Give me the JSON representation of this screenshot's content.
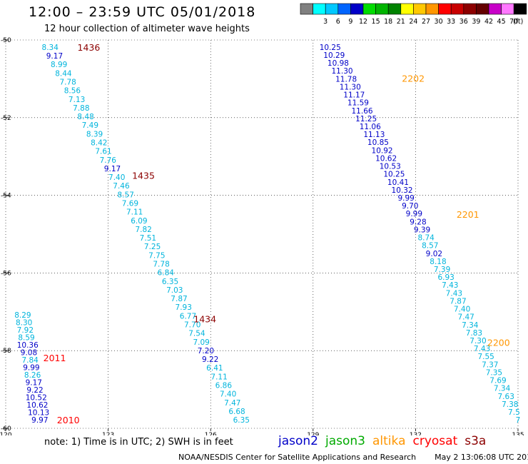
{
  "header": {
    "title": "12:00 – 23:59 UTC 05/01/2018",
    "subtitle": "12 hour collection of altimeter wave heights"
  },
  "legend": {
    "unit": "(ft)",
    "bins": [
      {
        "label": "",
        "color": "#808080"
      },
      {
        "label": "3",
        "color": "#00ffff"
      },
      {
        "label": "6",
        "color": "#00c8ff"
      },
      {
        "label": "9",
        "color": "#0064ff"
      },
      {
        "label": "12",
        "color": "#0000c8"
      },
      {
        "label": "15",
        "color": "#00dc00"
      },
      {
        "label": "18",
        "color": "#00b400"
      },
      {
        "label": "21",
        "color": "#008200"
      },
      {
        "label": "24",
        "color": "#ffff00"
      },
      {
        "label": "27",
        "color": "#ffc800"
      },
      {
        "label": "30",
        "color": "#ff9600"
      },
      {
        "label": "33",
        "color": "#ff0000"
      },
      {
        "label": "36",
        "color": "#c80000"
      },
      {
        "label": "39",
        "color": "#8c0000"
      },
      {
        "label": "42",
        "color": "#640000"
      },
      {
        "label": "45",
        "color": "#c800c8"
      },
      {
        "label": "70",
        "color": "#ff78ff"
      },
      {
        "label": "",
        "color": "#000000"
      }
    ]
  },
  "footer": {
    "note": "note: 1) Time is in UTC; 2) SWH is in feet",
    "satellites": [
      {
        "name": "jason2",
        "color": "#0000c8"
      },
      {
        "name": "jason3",
        "color": "#00aa00"
      },
      {
        "name": "altika",
        "color": "#ff9600"
      },
      {
        "name": "cryosat",
        "color": "#ff0000"
      },
      {
        "name": "s3a",
        "color": "#8c0000"
      }
    ],
    "credit": "NOAA/NESDIS Center for Satellite Applications and Research",
    "timestamp": "May  2 13:06:08 UTC 2018"
  },
  "chart_data": {
    "type": "scatter",
    "xlim": [
      120,
      135
    ],
    "ylim": [
      -60,
      -50
    ],
    "x_ticks": [
      "120",
      "123",
      "126",
      "129",
      "132",
      "135"
    ],
    "y_ticks": [
      "-50",
      "-52",
      "-54",
      "-56",
      "-58",
      "-60"
    ],
    "grid": "dotted",
    "colors": {
      "cyan": "#00b4dc",
      "blue": "#0000c8",
      "s3a": "#8c0000",
      "altika": "#ff9600",
      "cryosat": "#ff0000"
    },
    "series": [
      {
        "name": "s3a",
        "color_key": "cyan",
        "start": [
          121.3,
          -50.2
        ],
        "end": [
          126.9,
          -59.8
        ],
        "values": [
          "8.34",
          "9.17",
          "8.99",
          "8.44",
          "7.78",
          "8.56",
          "7.13",
          "7.88",
          "8.48",
          "7.49",
          "8.39",
          "8.42",
          "7.61",
          "7.76",
          "9.17",
          "7.40",
          "7.46",
          "8.57",
          "7.69",
          "7.11",
          "6.09",
          "7.82",
          "7.51",
          "7.25",
          "7.75",
          "7.78",
          "6.84",
          "6.35",
          "7.03",
          "7.87",
          "7.93",
          "6.77",
          "7.70",
          "7.54",
          "7.09",
          "7.20",
          "9.22",
          "6.41",
          "7.11",
          "6.86",
          "7.40",
          "7.47",
          "6.68",
          "6.35"
        ],
        "blue_indices": [
          1,
          14,
          35,
          36
        ],
        "time_labels": [
          {
            "text": "1436",
            "lon": 122.1,
            "lat": -50.2
          },
          {
            "text": "1435",
            "lon": 123.7,
            "lat": -53.5
          },
          {
            "text": "1434",
            "lon": 125.5,
            "lat": -57.2
          }
        ]
      },
      {
        "name": "altika",
        "color_key": "blue",
        "start": [
          129.5,
          -50.2
        ],
        "end": [
          135.0,
          -59.8
        ],
        "values": [
          "10.25",
          "10.29",
          "10.98",
          "11.30",
          "11.78",
          "11.30",
          "11.17",
          "11.59",
          "11.66",
          "11.25",
          "11.06",
          "11.13",
          "10.85",
          "10.92",
          "10.62",
          "10.53",
          "10.25",
          "10.41",
          "10.32",
          "9.99",
          "9.70",
          "9.99",
          "9.28",
          "9.39",
          "8.74",
          "8.57",
          "9.02",
          "8.18",
          "7.39",
          "6.93",
          "7.43",
          "7.43",
          "7.87",
          "7.40",
          "7.47",
          "7.34",
          "7.83",
          "7.30",
          "7.43",
          "7.55",
          "7.37",
          "7.35",
          "7.69",
          "7.34",
          "7.63",
          "7.38",
          "7.5",
          "7"
        ],
        "cyan_indices": [
          24,
          25,
          27,
          28,
          29,
          30,
          31,
          32,
          33,
          34,
          35,
          36,
          37,
          38,
          39,
          40,
          41,
          42,
          43,
          44,
          45,
          46,
          47
        ],
        "time_labels": [
          {
            "text": "2202",
            "lon": 131.6,
            "lat": -51.0
          },
          {
            "text": "2201",
            "lon": 133.2,
            "lat": -54.5
          },
          {
            "text": "2200",
            "lon": 134.1,
            "lat": -57.8
          }
        ]
      },
      {
        "name": "cryosat",
        "color_key": "blue",
        "start": [
          120.5,
          -57.1
        ],
        "end": [
          121.0,
          -59.8
        ],
        "values": [
          "8.29",
          "8.30",
          "7.92",
          "8.59",
          "10.36",
          "9.08",
          "7.84",
          "9.99",
          "8.26",
          "9.17",
          "9.22",
          "10.52",
          "10.62",
          "10.13",
          "9.97"
        ],
        "cyan_indices": [
          0,
          1,
          2,
          3,
          6,
          8
        ],
        "time_labels": [
          {
            "text": "2011",
            "lon": 121.1,
            "lat": -58.2
          },
          {
            "text": "2010",
            "lon": 121.5,
            "lat": -59.8
          }
        ]
      }
    ]
  }
}
